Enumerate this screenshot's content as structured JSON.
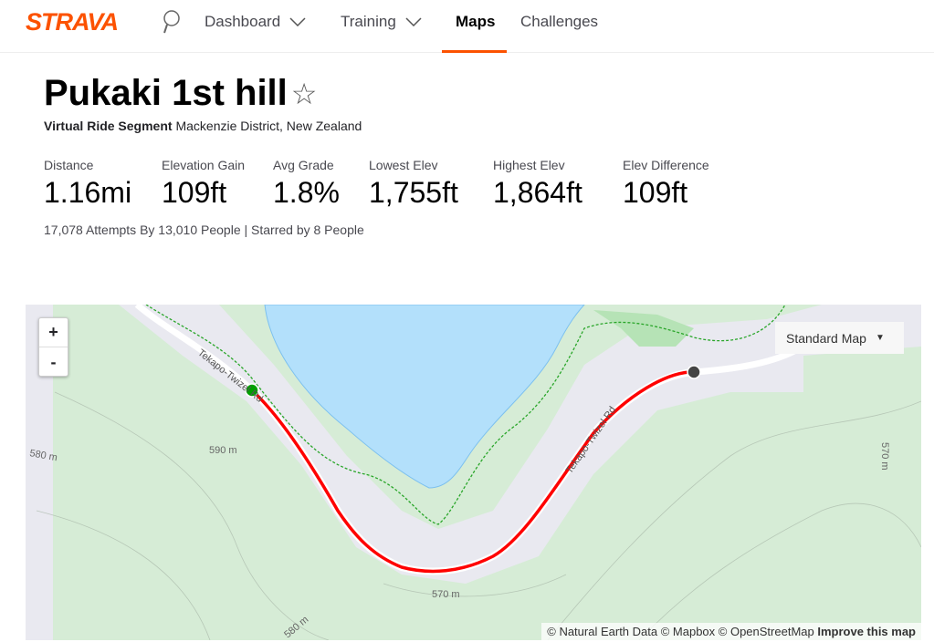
{
  "nav": {
    "logo": "STRAVA",
    "items": [
      {
        "label": "Dashboard"
      },
      {
        "label": "Training"
      },
      {
        "label": "Maps"
      },
      {
        "label": "Challenges"
      }
    ]
  },
  "segment": {
    "title": "Pukaki 1st hill",
    "type": "Virtual Ride Segment",
    "location": "Mackenzie District, New Zealand",
    "stats": [
      {
        "label": "Distance",
        "value": "1.16mi"
      },
      {
        "label": "Elevation Gain",
        "value": "109ft"
      },
      {
        "label": "Avg Grade",
        "value": "1.8%"
      },
      {
        "label": "Lowest Elev",
        "value": "1,755ft"
      },
      {
        "label": "Highest Elev",
        "value": "1,864ft"
      },
      {
        "label": "Elev Difference",
        "value": "109ft"
      }
    ],
    "attempts": "17,078 Attempts By 13,010 People | Starred by 8 People"
  },
  "map": {
    "zoom_in": "+",
    "zoom_out": "-",
    "map_type": "Standard Map",
    "attribution": "© Natural Earth Data © Mapbox © OpenStreetMap",
    "improve": "Improve this map",
    "labels": {
      "road1": "Tekapo-Twizel Rd",
      "road2": "Tekapo-Twizel Rd",
      "e580a": "580 m",
      "e590": "590 m",
      "e570a": "570 m",
      "e570b": "570 m",
      "e580b": "580 m"
    },
    "colors": {
      "route": "#ff0000",
      "water": "#b3e0fb",
      "land": "#d6ecd6",
      "start": "#00a000"
    }
  }
}
